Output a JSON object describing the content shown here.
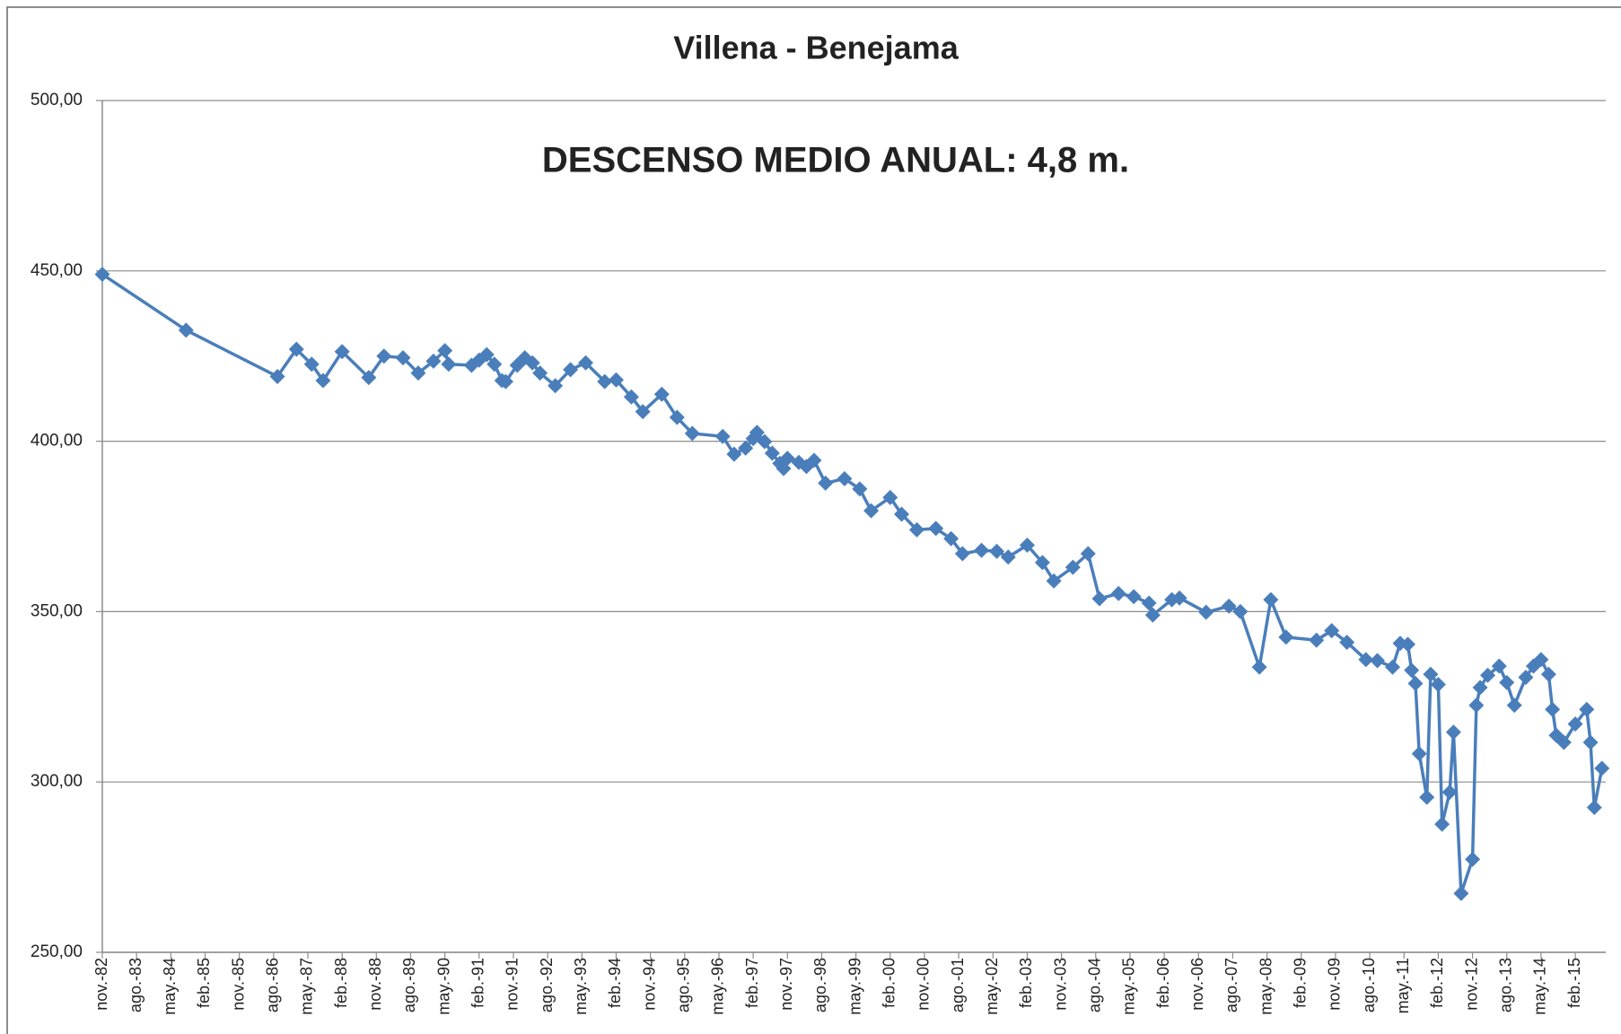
{
  "chart_data": {
    "type": "line",
    "title": "Villena - Benejama",
    "annotation": "DESCENSO MEDIO ANUAL: 4,8 m.",
    "x": [
      "1982-11",
      "1984-09",
      "1986-09",
      "1987-02",
      "1987-06",
      "1987-09",
      "1988-02",
      "1988-09",
      "1989-01",
      "1989-06",
      "1989-10",
      "1990-02",
      "1990-05",
      "1990-06",
      "1990-12",
      "1991-02",
      "1991-04",
      "1991-06",
      "1991-08",
      "1991-09",
      "1991-12",
      "1992-02",
      "1992-04",
      "1992-06",
      "1992-10",
      "1993-02",
      "1993-06",
      "1993-11",
      "1994-02",
      "1994-06",
      "1994-09",
      "1995-02",
      "1995-06",
      "1995-10",
      "1996-06",
      "1996-09",
      "1996-12",
      "1997-02",
      "1997-03",
      "1997-05",
      "1997-07",
      "1997-09",
      "1997-10",
      "1997-11",
      "1998-02",
      "1998-04",
      "1998-06",
      "1998-09",
      "1999-02",
      "1999-06",
      "1999-09",
      "2000-02",
      "2000-05",
      "2000-09",
      "2001-02",
      "2001-06",
      "2001-09",
      "2002-02",
      "2002-06",
      "2002-09",
      "2003-02",
      "2003-06",
      "2003-09",
      "2004-02",
      "2004-06",
      "2004-09",
      "2005-02",
      "2005-06",
      "2005-10",
      "2005-11",
      "2006-04",
      "2006-06",
      "2007-01",
      "2007-07",
      "2007-10",
      "2008-03",
      "2008-06",
      "2008-10",
      "2009-06",
      "2009-10",
      "2010-02",
      "2010-07",
      "2010-10",
      "2011-02",
      "2011-04",
      "2011-06",
      "2011-07",
      "2011-08",
      "2011-09",
      "2011-11",
      "2011-12",
      "2012-02",
      "2012-03",
      "2012-05",
      "2012-06",
      "2012-08",
      "2012-11",
      "2012-12",
      "2013-01",
      "2013-03",
      "2013-06",
      "2013-08",
      "2013-10",
      "2014-01",
      "2014-03",
      "2014-05",
      "2014-07",
      "2014-08",
      "2014-09",
      "2014-11",
      "2015-02",
      "2015-05",
      "2015-06",
      "2015-07",
      "2015-09"
    ],
    "series": [
      {
        "name": "Villena - Benejama",
        "color": "#4a7ebb",
        "values": [
          449,
          432.6,
          419,
          427,
          422.6,
          417.8,
          426.3,
          418.7,
          425,
          424.5,
          420,
          423.5,
          426.6,
          422.6,
          422.3,
          423.8,
          425.4,
          422.6,
          417.8,
          417.5,
          422.3,
          424.5,
          423,
          420,
          416.3,
          421,
          423,
          417.5,
          418,
          413,
          408.7,
          413.8,
          407,
          402.3,
          401.4,
          396.2,
          398,
          400.8,
          402.6,
          399.9,
          396.5,
          393.5,
          392,
          395,
          393.8,
          392.6,
          394.4,
          387.7,
          389,
          386,
          379.6,
          383.5,
          378.6,
          374,
          374.4,
          371.4,
          367,
          368,
          367.7,
          366,
          369.5,
          364.4,
          359,
          363,
          367,
          353.8,
          355.3,
          354.4,
          352.5,
          349,
          353.5,
          354,
          349.8,
          351.6,
          350,
          333.7,
          353.5,
          342.5,
          341.6,
          344.4,
          341,
          335.9,
          335.6,
          333.7,
          340.7,
          340.4,
          332.8,
          328.9,
          308.3,
          295.5,
          331.6,
          328.6,
          287.6,
          297,
          314.6,
          267.3,
          277.3,
          322.5,
          327.7,
          331.3,
          334,
          329.2,
          322.5,
          330.7,
          334,
          335.9,
          331.6,
          321.3,
          313.7,
          311.6,
          317,
          321.3,
          311.6,
          292.5,
          304
        ]
      }
    ],
    "xlim": [
      "1982-11",
      "2015-10"
    ],
    "xticks": [
      {
        "value": "1982-11",
        "label": "nov.-82"
      },
      {
        "value": "1983-08",
        "label": "ago.-83"
      },
      {
        "value": "1984-05",
        "label": "may.-84"
      },
      {
        "value": "1985-02",
        "label": "feb.-85"
      },
      {
        "value": "1985-11",
        "label": "nov.-85"
      },
      {
        "value": "1986-08",
        "label": "ago.-86"
      },
      {
        "value": "1987-05",
        "label": "may.-87"
      },
      {
        "value": "1988-02",
        "label": "feb.-88"
      },
      {
        "value": "1988-11",
        "label": "nov.-88"
      },
      {
        "value": "1989-08",
        "label": "ago.-89"
      },
      {
        "value": "1990-05",
        "label": "may.-90"
      },
      {
        "value": "1991-02",
        "label": "feb.-91"
      },
      {
        "value": "1991-11",
        "label": "nov.-91"
      },
      {
        "value": "1992-08",
        "label": "ago.-92"
      },
      {
        "value": "1993-05",
        "label": "may.-93"
      },
      {
        "value": "1994-02",
        "label": "feb.-94"
      },
      {
        "value": "1994-11",
        "label": "nov.-94"
      },
      {
        "value": "1995-08",
        "label": "ago.-95"
      },
      {
        "value": "1996-05",
        "label": "may.-96"
      },
      {
        "value": "1997-02",
        "label": "feb.-97"
      },
      {
        "value": "1997-11",
        "label": "nov.-97"
      },
      {
        "value": "1998-08",
        "label": "ago.-98"
      },
      {
        "value": "1999-05",
        "label": "may.-99"
      },
      {
        "value": "2000-02",
        "label": "feb.-00"
      },
      {
        "value": "2000-11",
        "label": "nov.-00"
      },
      {
        "value": "2001-08",
        "label": "ago.-01"
      },
      {
        "value": "2002-05",
        "label": "may.-02"
      },
      {
        "value": "2003-02",
        "label": "feb.-03"
      },
      {
        "value": "2003-11",
        "label": "nov.-03"
      },
      {
        "value": "2004-08",
        "label": "ago.-04"
      },
      {
        "value": "2005-05",
        "label": "may.-05"
      },
      {
        "value": "2006-02",
        "label": "feb.-06"
      },
      {
        "value": "2006-11",
        "label": "nov.-06"
      },
      {
        "value": "2007-08",
        "label": "ago.-07"
      },
      {
        "value": "2008-05",
        "label": "may.-08"
      },
      {
        "value": "2009-02",
        "label": "feb.-09"
      },
      {
        "value": "2009-11",
        "label": "nov.-09"
      },
      {
        "value": "2010-08",
        "label": "ago.-10"
      },
      {
        "value": "2011-05",
        "label": "may.-11"
      },
      {
        "value": "2012-02",
        "label": "feb.-12"
      },
      {
        "value": "2012-11",
        "label": "nov.-12"
      },
      {
        "value": "2013-08",
        "label": "ago.-13"
      },
      {
        "value": "2014-05",
        "label": "may.-14"
      },
      {
        "value": "2015-02",
        "label": "feb.-15"
      }
    ],
    "ylim": [
      250,
      500
    ],
    "yticks": [
      {
        "value": 250,
        "label": "250,00"
      },
      {
        "value": 300,
        "label": "300,00"
      },
      {
        "value": 350,
        "label": "350,00"
      },
      {
        "value": 400,
        "label": "400,00"
      },
      {
        "value": 450,
        "label": "450,00"
      },
      {
        "value": 500,
        "label": "500,00"
      }
    ],
    "grid": true
  }
}
